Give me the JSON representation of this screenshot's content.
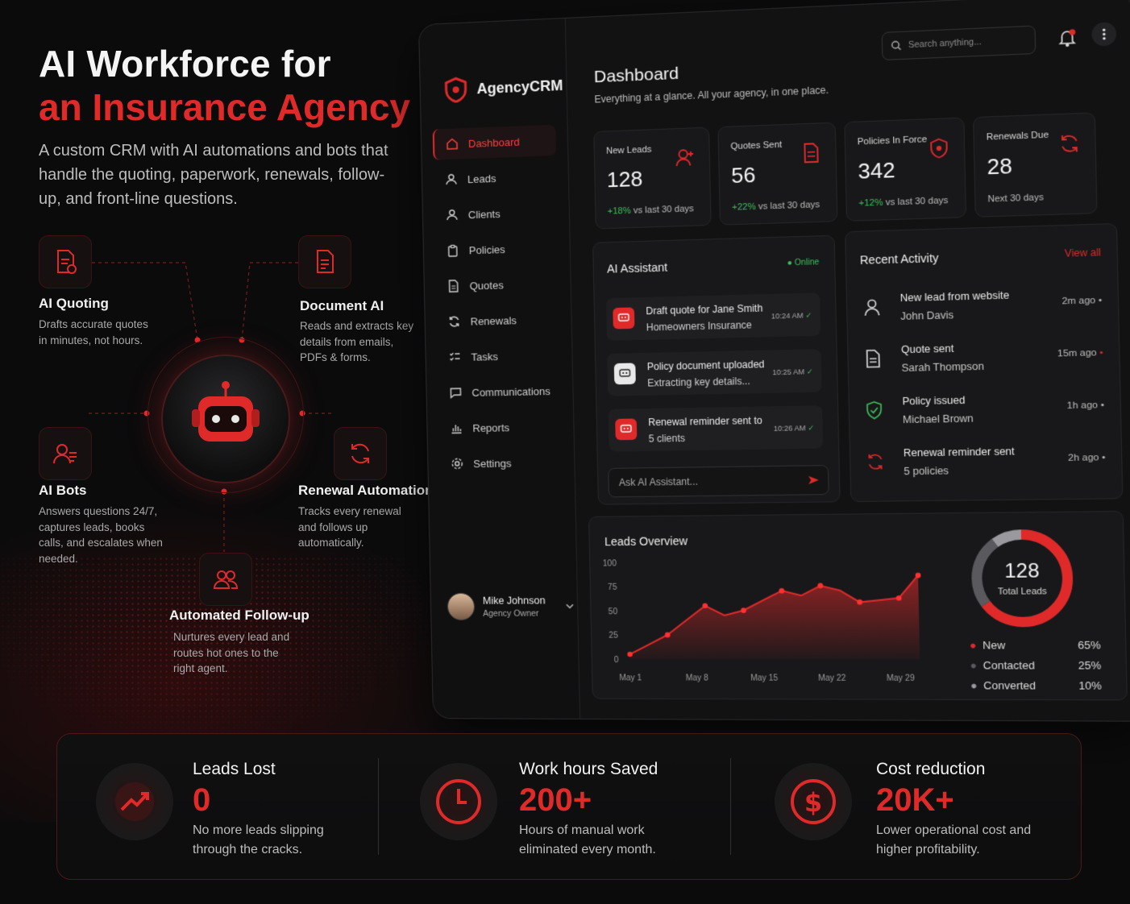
{
  "hero": {
    "title_line1": "AI Workforce for",
    "title_line2": "an Insurance Agency",
    "subtitle": "A custom CRM with AI automations and bots that handle the quoting, paperwork, renewals, follow-up, and front-line questions."
  },
  "features": [
    {
      "title": "AI Quoting",
      "desc": "Drafts accurate quotes in minutes, not hours.",
      "icon": "quote-document-icon"
    },
    {
      "title": "Document AI",
      "desc": "Reads and extracts key details from emails, PDFs & forms.",
      "icon": "document-scan-icon"
    },
    {
      "title": "AI Bots",
      "desc": "Answers questions 24/7, captures leads, books calls, and escalates when needed.",
      "icon": "users-icon"
    },
    {
      "title": "Renewal Automation",
      "desc": "Tracks every renewal and follows up automatically.",
      "icon": "refresh-icon"
    },
    {
      "title": "Automated Follow-up",
      "desc": "Nurtures every lead and routes hot ones to the right agent.",
      "icon": "team-icon"
    }
  ],
  "app": {
    "brand": "AgencyCRM",
    "search_placeholder": "Search anything...",
    "nav": [
      "Dashboard",
      "Leads",
      "Clients",
      "Policies",
      "Quotes",
      "Renewals",
      "Tasks",
      "Communications",
      "Reports",
      "Settings"
    ],
    "active_nav": "Dashboard",
    "user": {
      "name": "Mike Johnson",
      "role": "Agency Owner"
    },
    "page_title": "Dashboard",
    "page_subtitle": "Everything at a glance. All your agency, in one place.",
    "stats": [
      {
        "label": "New Leads",
        "value": "128",
        "change": "+18%",
        "sub": "vs last 30 days"
      },
      {
        "label": "Quotes Sent",
        "value": "56",
        "change": "+22%",
        "sub": "vs last 30 days"
      },
      {
        "label": "Policies In Force",
        "value": "342",
        "change": "+12%",
        "sub": "vs last 30 days"
      },
      {
        "label": "Renewals Due",
        "value": "28",
        "change": "",
        "sub": "Next 30 days"
      }
    ],
    "assistant": {
      "title": "AI Assistant",
      "status": "Online",
      "messages": [
        {
          "line1": "Draft quote for Jane Smith",
          "line2": "Homeowners Insurance",
          "time": "10:24 AM"
        },
        {
          "line1": "Policy document uploaded",
          "line2": "Extracting key details...",
          "time": "10:25 AM"
        },
        {
          "line1": "Renewal reminder sent to",
          "line2": "5 clients",
          "time": "10:26 AM"
        }
      ],
      "input_placeholder": "Ask AI Assistant..."
    },
    "activity": {
      "title": "Recent Activity",
      "view_all": "View all",
      "items": [
        {
          "line1": "New lead from website",
          "line2": "John Davis",
          "time": "2m ago",
          "icon": "user-icon"
        },
        {
          "line1": "Quote sent",
          "line2": "Sarah Thompson",
          "time": "15m ago",
          "icon": "document-icon"
        },
        {
          "line1": "Policy issued",
          "line2": "Michael Brown",
          "time": "1h ago",
          "icon": "shield-check-icon"
        },
        {
          "line1": "Renewal reminder sent",
          "line2": "5 policies",
          "time": "2h ago",
          "icon": "refresh-icon"
        }
      ]
    },
    "leads_overview": {
      "title": "Leads Overview",
      "donut_value": "128",
      "donut_label": "Total Leads",
      "legend": [
        {
          "name": "New",
          "pct": "65%",
          "color": "#e02a2a"
        },
        {
          "name": "Contacted",
          "pct": "25%",
          "color": "#5a5a5e"
        },
        {
          "name": "Converted",
          "pct": "10%",
          "color": "#9a9a9e"
        }
      ]
    }
  },
  "chart_data": {
    "type": "area",
    "title": "Leads Overview",
    "x_ticks": [
      "May 1",
      "May 8",
      "May 15",
      "May 22",
      "May 29"
    ],
    "y_ticks": [
      0,
      25,
      50,
      75,
      100
    ],
    "ylim": [
      0,
      100
    ],
    "x": [
      1,
      3,
      5,
      7,
      9,
      11,
      13,
      15,
      17,
      19,
      21,
      23,
      25,
      27,
      29,
      31
    ],
    "values": [
      5,
      15,
      25,
      40,
      55,
      45,
      50,
      60,
      70,
      65,
      75,
      70,
      58,
      60,
      62,
      85
    ]
  },
  "bottom_stats": [
    {
      "title": "Leads Lost",
      "value": "0",
      "desc": "No more leads slipping through the cracks."
    },
    {
      "title": "Work hours Saved",
      "value": "200+",
      "desc": "Hours of manual work eliminated every month."
    },
    {
      "title": "Cost reduction",
      "value": "20K+",
      "desc": "Lower operational cost and higher profitability."
    }
  ],
  "colors": {
    "accent": "#e02a2a",
    "positive": "#3fbf5a",
    "bg": "#0b0b0c"
  }
}
